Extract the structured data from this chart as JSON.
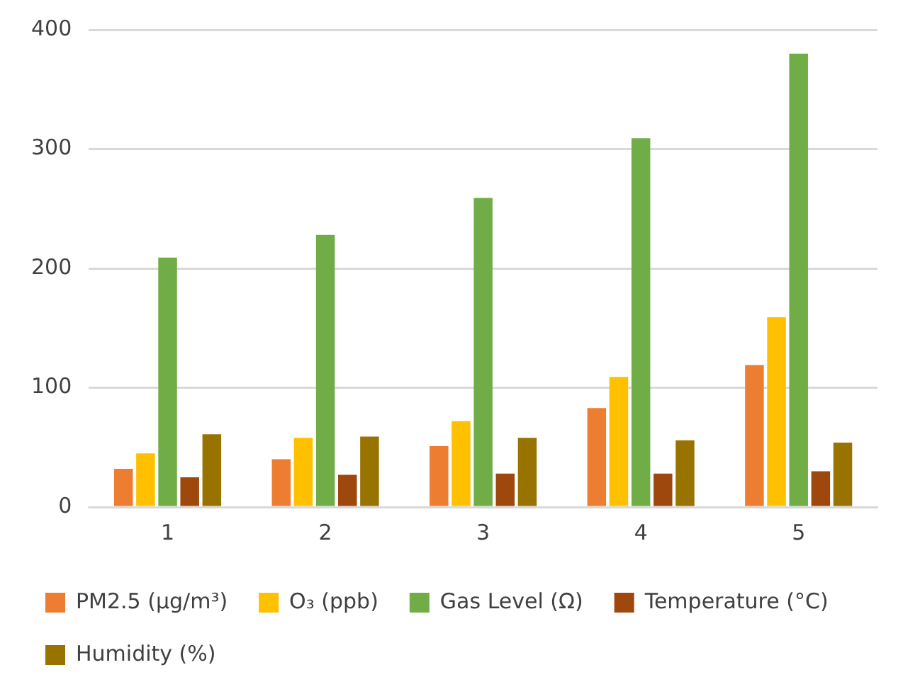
{
  "chart_data": {
    "type": "bar",
    "categories": [
      "1",
      "2",
      "3",
      "4",
      "5"
    ],
    "series": [
      {
        "name": "PM2.5 (µg/m³)",
        "color": "#ed7d31",
        "values": [
          32,
          40,
          51,
          83,
          119
        ]
      },
      {
        "name": "O₃ (ppb)",
        "color": "#ffc000",
        "values": [
          45,
          58,
          72,
          109,
          159
        ]
      },
      {
        "name": "Gas Level (Ω)",
        "color": "#70ad47",
        "values": [
          209,
          228,
          259,
          309,
          380
        ]
      },
      {
        "name": "Temperature (°C)",
        "color": "#9e480e",
        "values": [
          25,
          27,
          28,
          28,
          30
        ]
      },
      {
        "name": "Humidity (%)",
        "color": "#997300",
        "values": [
          61,
          59,
          58,
          56,
          54
        ]
      }
    ],
    "ylim": [
      0,
      400
    ],
    "yticks": [
      0,
      100,
      200,
      300,
      400
    ],
    "grid": "y",
    "legend": "bottom"
  }
}
